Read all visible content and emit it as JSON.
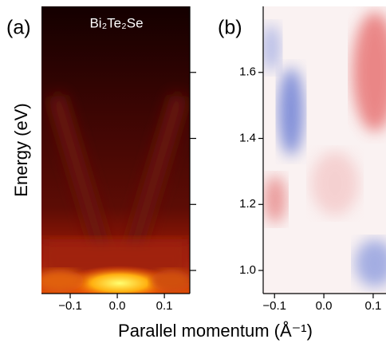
{
  "chart_data": [
    {
      "type": "heatmap",
      "panel_label": "(a)",
      "title": "Bi₂Te₂Se",
      "xlabel": "Parallel momentum (Å⁻¹)",
      "ylabel": "Energy (eV)",
      "xlim": [
        -0.161,
        0.154
      ],
      "xticks": [
        {
          "value": -0.1,
          "label": "−0.1"
        },
        {
          "value": 0,
          "label": "0.0"
        },
        0.1
      ],
      "ylim": [
        0.93,
        1.8
      ],
      "yticks": [
        1.0,
        1.2,
        1.4,
        1.6
      ]
    },
    {
      "type": "heatmap",
      "panel_label": "(b)",
      "xlim": [
        -0.123,
        0.126
      ],
      "xticks": [
        {
          "value": -0.1,
          "label": "−0.1"
        },
        {
          "value": 0,
          "label": "0.0"
        },
        0.1
      ],
      "ylim": [
        0.93,
        1.8
      ],
      "yticks": [
        {
          "value": 1.0,
          "label": "1.0"
        },
        1.2,
        1.4,
        1.6
      ]
    }
  ]
}
